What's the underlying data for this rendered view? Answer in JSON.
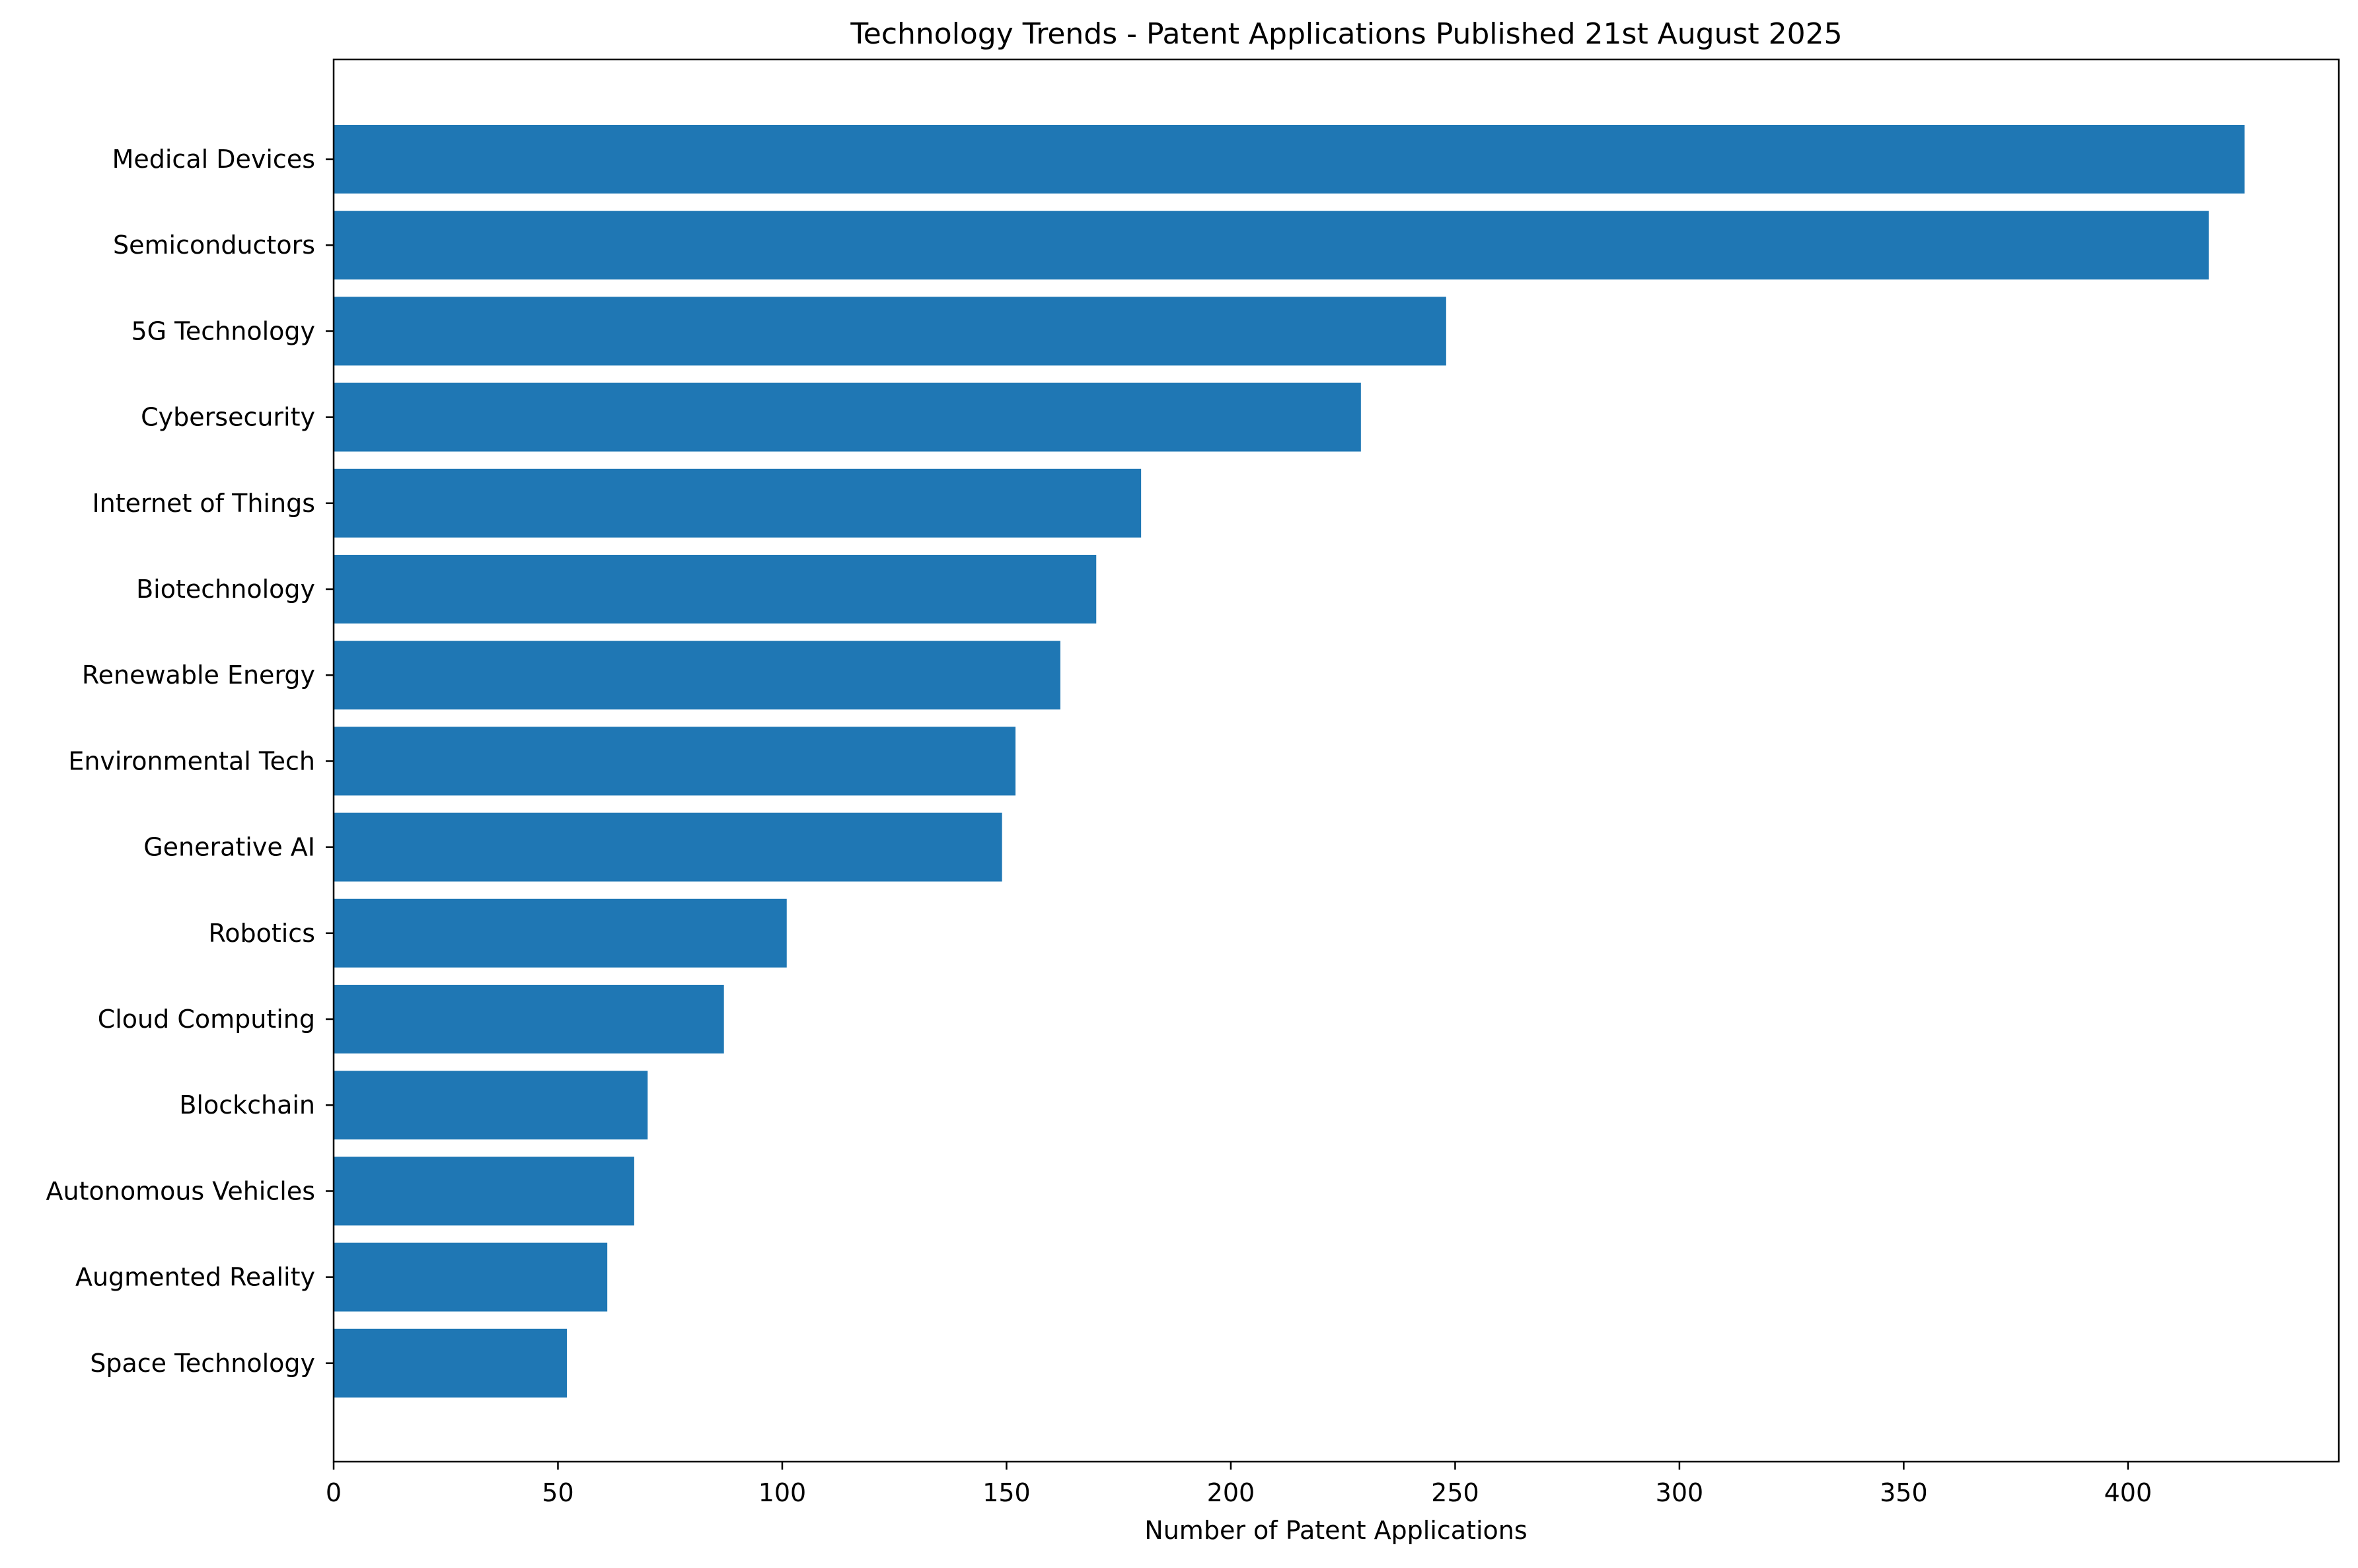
{
  "chart_data": {
    "type": "bar",
    "orientation": "horizontal",
    "title": "Technology Trends - Patent Applications Published 21st August 2025",
    "xlabel": "Number of Patent Applications",
    "ylabel": "",
    "categories": [
      "Medical Devices",
      "Semiconductors",
      "5G Technology",
      "Cybersecurity",
      "Internet of Things",
      "Biotechnology",
      "Renewable Energy",
      "Environmental Tech",
      "Generative AI",
      "Robotics",
      "Cloud Computing",
      "Blockchain",
      "Autonomous Vehicles",
      "Augmented Reality",
      "Space Technology"
    ],
    "values": [
      426,
      418,
      248,
      229,
      180,
      170,
      162,
      152,
      149,
      101,
      87,
      70,
      67,
      61,
      52
    ],
    "xlim": [
      0,
      447
    ],
    "xticks": [
      0,
      50,
      100,
      150,
      200,
      250,
      300,
      350,
      400
    ],
    "bar_color": "#1f77b4",
    "grid": false,
    "legend": "none"
  }
}
